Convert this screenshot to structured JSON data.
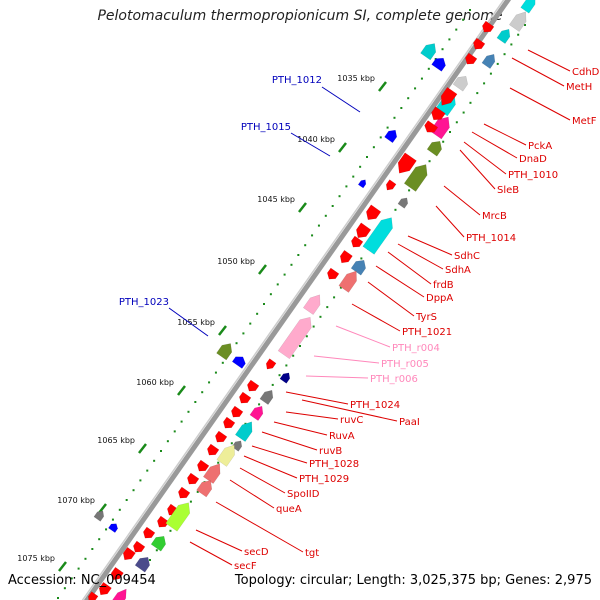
{
  "title": "Pelotomaculum thermopropionicum SI, complete genome",
  "footer": {
    "accession": "Accession: NC_009454",
    "topology": "Topology: circular; Length: 3,025,375 bp; Genes: 2,975"
  },
  "colors": {
    "cds": "#ff0000",
    "cds_labeled": "#0000cc",
    "rna": "#ff99cc",
    "backbone": "#888888",
    "tick": "#1a8a1a",
    "label_forward": "#0000bb",
    "label_reverse": "#dd0000",
    "label_rna": "#ff88bb"
  },
  "kbp_ticks": [
    "1035 kbp",
    "1040 kbp",
    "1045 kbp",
    "1050 kbp",
    "1055 kbp",
    "1060 kbp",
    "1065 kbp",
    "1070 kbp",
    "1075 kbp"
  ],
  "forward_labels": [
    "PTH_1012",
    "PTH_1015",
    "PTH_1023"
  ],
  "reverse_labels": [
    "CdhD",
    "MetH",
    "MetF",
    "PckA",
    "DnaD",
    "PTH_1010",
    "SleB",
    "MrcB",
    "PTH_1014",
    "SdhC",
    "SdhA",
    "frdB",
    "DppA",
    "TyrS",
    "PTH_1021",
    "PTH_r004",
    "PTH_r005",
    "PTH_r006",
    "PTH_1024",
    "PaaI",
    "ruvC",
    "RuvA",
    "ruvB",
    "PTH_1028",
    "PTH_1029",
    "SpoIID",
    "queA",
    "tgt",
    "secD",
    "secF"
  ],
  "rna_labels": [
    "PTH_r004",
    "PTH_r005",
    "PTH_r006"
  ]
}
